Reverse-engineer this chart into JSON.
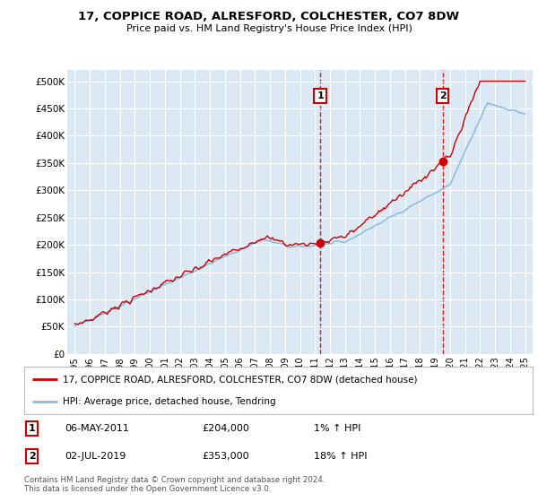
{
  "title": "17, COPPICE ROAD, ALRESFORD, COLCHESTER, CO7 8DW",
  "subtitle": "Price paid vs. HM Land Registry's House Price Index (HPI)",
  "background_color": "#dce9f5",
  "plot_bg_color": "#dce9f5",
  "sale1_date": "06-MAY-2011",
  "sale1_price": 204000,
  "sale1_hpi_pct": "1%",
  "sale2_date": "02-JUL-2019",
  "sale2_price": 353000,
  "sale2_hpi_pct": "18%",
  "legend_label1": "17, COPPICE ROAD, ALRESFORD, COLCHESTER, CO7 8DW (detached house)",
  "legend_label2": "HPI: Average price, detached house, Tendring",
  "footer": "Contains HM Land Registry data © Crown copyright and database right 2024.\nThis data is licensed under the Open Government Licence v3.0.",
  "line1_color": "#cc0000",
  "line2_color": "#88bbdd",
  "yticks": [
    0,
    50000,
    100000,
    150000,
    200000,
    250000,
    300000,
    350000,
    400000,
    450000,
    500000
  ],
  "ylim": [
    0,
    520000
  ],
  "sale1_year": 2011.35,
  "sale2_year": 2019.5
}
